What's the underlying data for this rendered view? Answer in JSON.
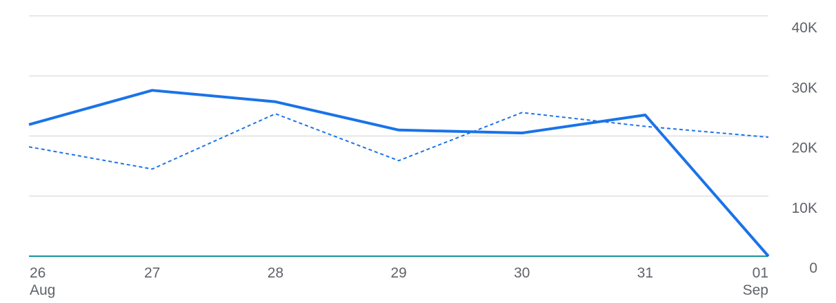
{
  "chart_data": {
    "type": "line",
    "categories": [
      "26",
      "27",
      "28",
      "29",
      "30",
      "31",
      "01"
    ],
    "month_labels": [
      "Aug",
      null,
      null,
      null,
      null,
      null,
      "Sep"
    ],
    "series": [
      {
        "color": "#1a73e8",
        "style": "solid",
        "values": [
          21900,
          27600,
          25700,
          21000,
          20500,
          23500,
          0
        ]
      },
      {
        "color": "#1a73e8",
        "style": "dashed",
        "values": [
          18200,
          14500,
          23700,
          15900,
          23900,
          21600,
          19800
        ]
      }
    ],
    "ylim": [
      0,
      40000
    ],
    "yticks": [
      0,
      {
        "value": 10000,
        "label": "10K"
      },
      {
        "value": 20000,
        "label": "20K"
      },
      {
        "value": 30000,
        "label": "30K"
      },
      {
        "value": 40000,
        "label": "40K"
      }
    ],
    "y_axis_side": "right",
    "grid": true,
    "baseline_color": "#12939a"
  }
}
